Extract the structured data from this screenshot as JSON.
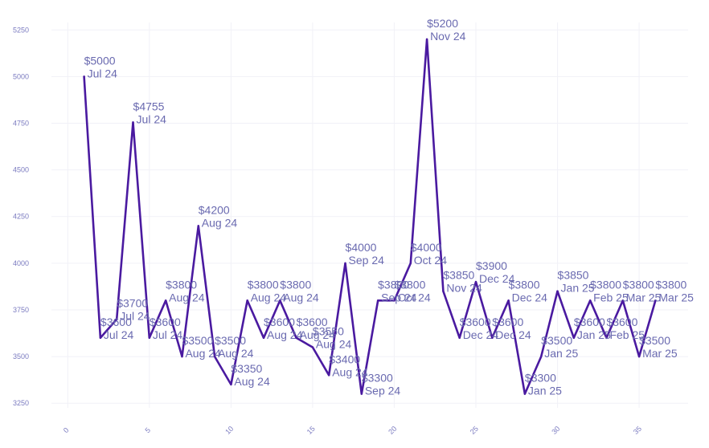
{
  "chart_data": {
    "type": "line",
    "title": "",
    "xlabel": "",
    "ylabel": "",
    "xlim": [
      -1,
      38
    ],
    "ylim": [
      3225,
      5290
    ],
    "grid": true,
    "colors": {
      "line": "#4a1aa0",
      "label": "#6a6ab0",
      "tick": "#7b7bc0",
      "grid": "#f1f1f7"
    },
    "x_ticks": [
      0,
      5,
      10,
      15,
      20,
      25,
      30,
      35
    ],
    "y_ticks": [
      3250,
      3500,
      3750,
      4000,
      4250,
      4500,
      4750,
      5000,
      5250
    ],
    "x_tick_labels": [
      "0",
      "5",
      "10",
      "15",
      "20",
      "25",
      "30",
      "35"
    ],
    "y_tick_labels": [
      "3250",
      "3500",
      "3750",
      "4000",
      "4250",
      "4500",
      "4750",
      "5000",
      "5250"
    ],
    "series": [
      {
        "points": [
          {
            "x": 1,
            "y": 5000,
            "price": "$5000",
            "month": "Jul 24"
          },
          {
            "x": 2,
            "y": 3600,
            "price": "$3600",
            "month": "Jul 24"
          },
          {
            "x": 3,
            "y": 3700,
            "price": "$3700",
            "month": "Jul 24"
          },
          {
            "x": 4,
            "y": 4755,
            "price": "$4755",
            "month": "Jul 24"
          },
          {
            "x": 5,
            "y": 3600,
            "price": "$3600",
            "month": "Jul 24"
          },
          {
            "x": 6,
            "y": 3800,
            "price": "$3800",
            "month": "Aug 24"
          },
          {
            "x": 7,
            "y": 3500,
            "price": "$3500",
            "month": "Aug 24"
          },
          {
            "x": 8,
            "y": 4200,
            "price": "$4200",
            "month": "Aug 24"
          },
          {
            "x": 9,
            "y": 3500,
            "price": "$3500",
            "month": "Aug 24"
          },
          {
            "x": 10,
            "y": 3350,
            "price": "$3350",
            "month": "Aug 24"
          },
          {
            "x": 11,
            "y": 3800,
            "price": "$3800",
            "month": "Aug 24"
          },
          {
            "x": 12,
            "y": 3600,
            "price": "$3600",
            "month": "Aug 24"
          },
          {
            "x": 13,
            "y": 3800,
            "price": "$3800",
            "month": "Aug 24"
          },
          {
            "x": 14,
            "y": 3600,
            "price": "$3600",
            "month": "Aug 24"
          },
          {
            "x": 15,
            "y": 3550,
            "price": "$3550",
            "month": "Aug 24"
          },
          {
            "x": 16,
            "y": 3400,
            "price": "$3400",
            "month": "Aug 24"
          },
          {
            "x": 17,
            "y": 4000,
            "price": "$4000",
            "month": "Sep 24"
          },
          {
            "x": 18,
            "y": 3300,
            "price": "$3300",
            "month": "Sep 24"
          },
          {
            "x": 19,
            "y": 3800,
            "price": "$3800",
            "month": "Sep 24"
          },
          {
            "x": 20,
            "y": 3800,
            "price": "$3800",
            "month": "Oct 24"
          },
          {
            "x": 21,
            "y": 4000,
            "price": "$4000",
            "month": "Oct 24"
          },
          {
            "x": 22,
            "y": 5200,
            "price": "$5200",
            "month": "Nov 24"
          },
          {
            "x": 23,
            "y": 3850,
            "price": "$3850",
            "month": "Nov 24"
          },
          {
            "x": 24,
            "y": 3600,
            "price": "$3600",
            "month": "Dec 24"
          },
          {
            "x": 25,
            "y": 3900,
            "price": "$3900",
            "month": "Dec 24"
          },
          {
            "x": 26,
            "y": 3600,
            "price": "$3600",
            "month": "Dec 24"
          },
          {
            "x": 27,
            "y": 3800,
            "price": "$3800",
            "month": "Dec 24"
          },
          {
            "x": 28,
            "y": 3300,
            "price": "$3300",
            "month": "Jan 25"
          },
          {
            "x": 29,
            "y": 3500,
            "price": "$3500",
            "month": "Jan 25"
          },
          {
            "x": 30,
            "y": 3850,
            "price": "$3850",
            "month": "Jan 25"
          },
          {
            "x": 31,
            "y": 3600,
            "price": "$3600",
            "month": "Jan 25"
          },
          {
            "x": 32,
            "y": 3800,
            "price": "$3800",
            "month": "Feb 25"
          },
          {
            "x": 33,
            "y": 3600,
            "price": "$3600",
            "month": "Feb 25"
          },
          {
            "x": 34,
            "y": 3800,
            "price": "$3800",
            "month": "Mar 25"
          },
          {
            "x": 35,
            "y": 3500,
            "price": "$3500",
            "month": "Mar 25"
          },
          {
            "x": 36,
            "y": 3800,
            "price": "$3800",
            "month": "Mar 25"
          }
        ]
      }
    ]
  }
}
